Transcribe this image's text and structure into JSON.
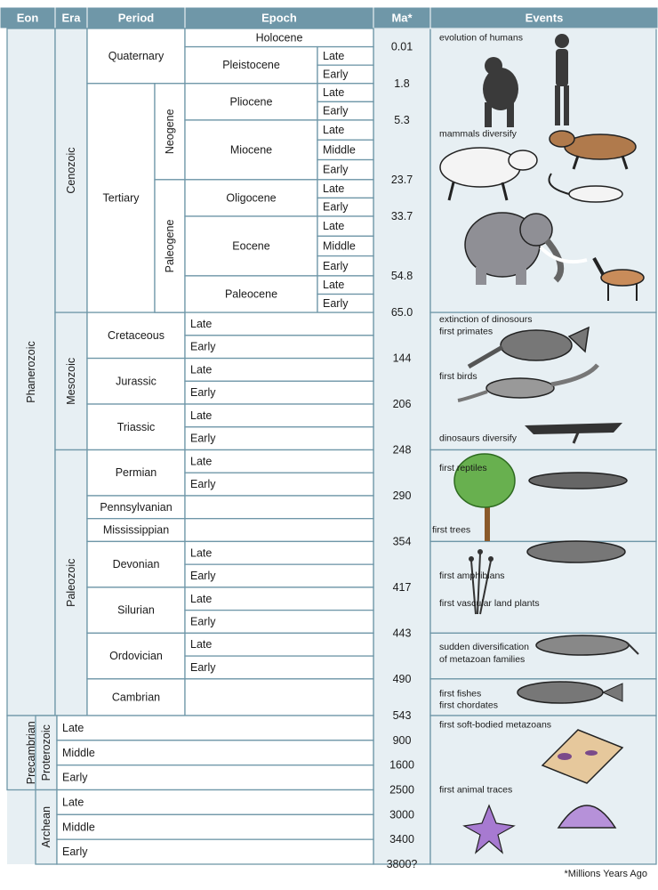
{
  "headers": {
    "eon": "Eon",
    "era": "Era",
    "period": "Period",
    "epoch": "Epoch",
    "ma": "Ma*",
    "events": "Events"
  },
  "colors": {
    "header_bg": "#6f97a8",
    "line": "#6f97a8",
    "cell_bg": "#ffffff",
    "left_bg": "#e7eff3"
  },
  "eons": [
    {
      "name": "Phanerozoic",
      "from": 0,
      "to": 15
    },
    {
      "name": "Precambrian",
      "from": 15,
      "to": 16.6
    }
  ],
  "eras": [
    {
      "name": "Cenozoic",
      "from": 0,
      "to": 6.2
    },
    {
      "name": "Mesozoic",
      "from": 6.2,
      "to": 9.2
    },
    {
      "name": "Paleozoic",
      "from": 9.2,
      "to": 15
    },
    {
      "name": "Proterozoic",
      "from": 15,
      "to": 16.6
    },
    {
      "name": "Archean",
      "from": 16.6,
      "to": 18.2
    }
  ],
  "subperiods": [
    {
      "name": "Neogene",
      "from": 1.2,
      "to": 3.3
    },
    {
      "name": "Paleogene",
      "from": 3.3,
      "to": 6.2
    }
  ],
  "periods": [
    {
      "name": "Quaternary",
      "from": 0,
      "to": 1.2
    },
    {
      "name": "Tertiary",
      "from": 1.2,
      "to": 6.2
    },
    {
      "name": "Cretaceous",
      "from": 6.2,
      "to": 7.2
    },
    {
      "name": "Jurassic",
      "from": 7.2,
      "to": 8.2
    },
    {
      "name": "Triassic",
      "from": 8.2,
      "to": 9.2
    },
    {
      "name": "Permian",
      "from": 9.2,
      "to": 10.2
    },
    {
      "name": "Pennsylvanian",
      "from": 10.2,
      "to": 10.7
    },
    {
      "name": "Mississippian",
      "from": 10.7,
      "to": 11.2
    },
    {
      "name": "Devonian",
      "from": 11.2,
      "to": 12.2
    },
    {
      "name": "Silurian",
      "from": 12.2,
      "to": 13.2
    },
    {
      "name": "Ordovician",
      "from": 13.2,
      "to": 14.2
    },
    {
      "name": "Cambrian",
      "from": 14.2,
      "to": 15
    }
  ],
  "epochs": [
    {
      "name": "Holocene",
      "from": 0,
      "to": 0.4,
      "full": true
    },
    {
      "name": "Pleistocene",
      "from": 0.4,
      "to": 1.2,
      "subs": [
        "Late",
        "Early"
      ]
    },
    {
      "name": "Pliocene",
      "from": 1.2,
      "to": 2.0,
      "subs": [
        "Late",
        "Early"
      ]
    },
    {
      "name": "Miocene",
      "from": 2.0,
      "to": 3.3,
      "subs": [
        "Late",
        "Middle",
        "Early"
      ]
    },
    {
      "name": "Oligocene",
      "from": 3.3,
      "to": 4.1,
      "subs": [
        "Late",
        "Early"
      ]
    },
    {
      "name": "Eocene",
      "from": 4.1,
      "to": 5.4,
      "subs": [
        "Late",
        "Middle",
        "Early"
      ]
    },
    {
      "name": "Paleocene",
      "from": 5.4,
      "to": 6.2,
      "subs": [
        "Late",
        "Early"
      ]
    }
  ],
  "period_subdivisions": [
    {
      "name": "Late",
      "from": 6.2,
      "to": 6.7
    },
    {
      "name": "Early",
      "from": 6.7,
      "to": 7.2
    },
    {
      "name": "Late",
      "from": 7.2,
      "to": 7.7
    },
    {
      "name": "Early",
      "from": 7.7,
      "to": 8.2
    },
    {
      "name": "Late",
      "from": 8.2,
      "to": 8.7
    },
    {
      "name": "Early",
      "from": 8.7,
      "to": 9.2
    },
    {
      "name": "Late",
      "from": 9.2,
      "to": 9.7
    },
    {
      "name": "Early",
      "from": 9.7,
      "to": 10.2
    },
    {
      "name": "",
      "from": 10.2,
      "to": 10.7
    },
    {
      "name": "",
      "from": 10.7,
      "to": 11.2
    },
    {
      "name": "Late",
      "from": 11.2,
      "to": 11.7
    },
    {
      "name": "Early",
      "from": 11.7,
      "to": 12.2
    },
    {
      "name": "Late",
      "from": 12.2,
      "to": 12.7
    },
    {
      "name": "Early",
      "from": 12.7,
      "to": 13.2
    },
    {
      "name": "Late",
      "from": 13.2,
      "to": 13.7
    },
    {
      "name": "Early",
      "from": 13.7,
      "to": 14.2
    },
    {
      "name": "",
      "from": 14.2,
      "to": 15
    }
  ],
  "precambrian_rows": [
    {
      "name": "Late",
      "from": 15,
      "to": 15.533
    },
    {
      "name": "Middle",
      "from": 15.533,
      "to": 16.067
    },
    {
      "name": "Early",
      "from": 16.067,
      "to": 16.6
    },
    {
      "name": "Late",
      "from": 16.6,
      "to": 17.133
    },
    {
      "name": "Middle",
      "from": 17.133,
      "to": 17.667
    },
    {
      "name": "Early",
      "from": 17.667,
      "to": 18.2
    }
  ],
  "ma_values": [
    {
      "label": "0.01",
      "at": 0.4
    },
    {
      "label": "1.8",
      "at": 1.2
    },
    {
      "label": "5.3",
      "at": 2.0
    },
    {
      "label": "23.7",
      "at": 3.3
    },
    {
      "label": "33.7",
      "at": 4.1
    },
    {
      "label": "54.8",
      "at": 5.4
    },
    {
      "label": "65.0",
      "at": 6.2
    },
    {
      "label": "144",
      "at": 7.2
    },
    {
      "label": "206",
      "at": 8.2
    },
    {
      "label": "248",
      "at": 9.2
    },
    {
      "label": "290",
      "at": 10.2
    },
    {
      "label": "354",
      "at": 11.2
    },
    {
      "label": "417",
      "at": 12.2
    },
    {
      "label": "443",
      "at": 13.2
    },
    {
      "label": "490",
      "at": 14.2
    },
    {
      "label": "543",
      "at": 15
    },
    {
      "label": "900",
      "at": 15.533
    },
    {
      "label": "1600",
      "at": 16.067
    },
    {
      "label": "2500",
      "at": 16.6
    },
    {
      "label": "3000",
      "at": 17.133
    },
    {
      "label": "3400",
      "at": 17.667
    },
    {
      "label": "3800?",
      "at": 18.2
    }
  ],
  "event_panels": [
    {
      "from": 0,
      "to": 6.2
    },
    {
      "from": 6.2,
      "to": 9.2
    },
    {
      "from": 9.2,
      "to": 11.2
    },
    {
      "from": 11.2,
      "to": 13.2
    },
    {
      "from": 13.2,
      "to": 14.2
    },
    {
      "from": 14.2,
      "to": 15
    },
    {
      "from": 15,
      "to": 18.2
    }
  ],
  "events": [
    {
      "text": "evolution of humans",
      "at": 0.2
    },
    {
      "text": "mammals diversify",
      "at": 2.3
    },
    {
      "text": "extinction of dinosours",
      "at": 6.35
    },
    {
      "text": "first primates",
      "at": 6.62
    },
    {
      "text": "first birds",
      "at": 7.6
    },
    {
      "text": "dinosaurs diversify",
      "at": 8.95
    },
    {
      "text": "first reptiles",
      "at": 9.6
    },
    {
      "text": "first trees",
      "at": 10.95,
      "left": true
    },
    {
      "text": "first amphibians",
      "at": 11.95
    },
    {
      "text": "first vascular land plants",
      "at": 12.55
    },
    {
      "text": "sudden diversification",
      "at": 13.5
    },
    {
      "text": "of metazoan families",
      "at": 13.78
    },
    {
      "text": "first fishes",
      "at": 14.52
    },
    {
      "text": "first chordates",
      "at": 14.78
    },
    {
      "text": "first soft-bodied metazoans",
      "at": 15.2
    },
    {
      "text": "first animal traces",
      "at": 16.6
    }
  ],
  "footnote": "*Millions Years Ago"
}
